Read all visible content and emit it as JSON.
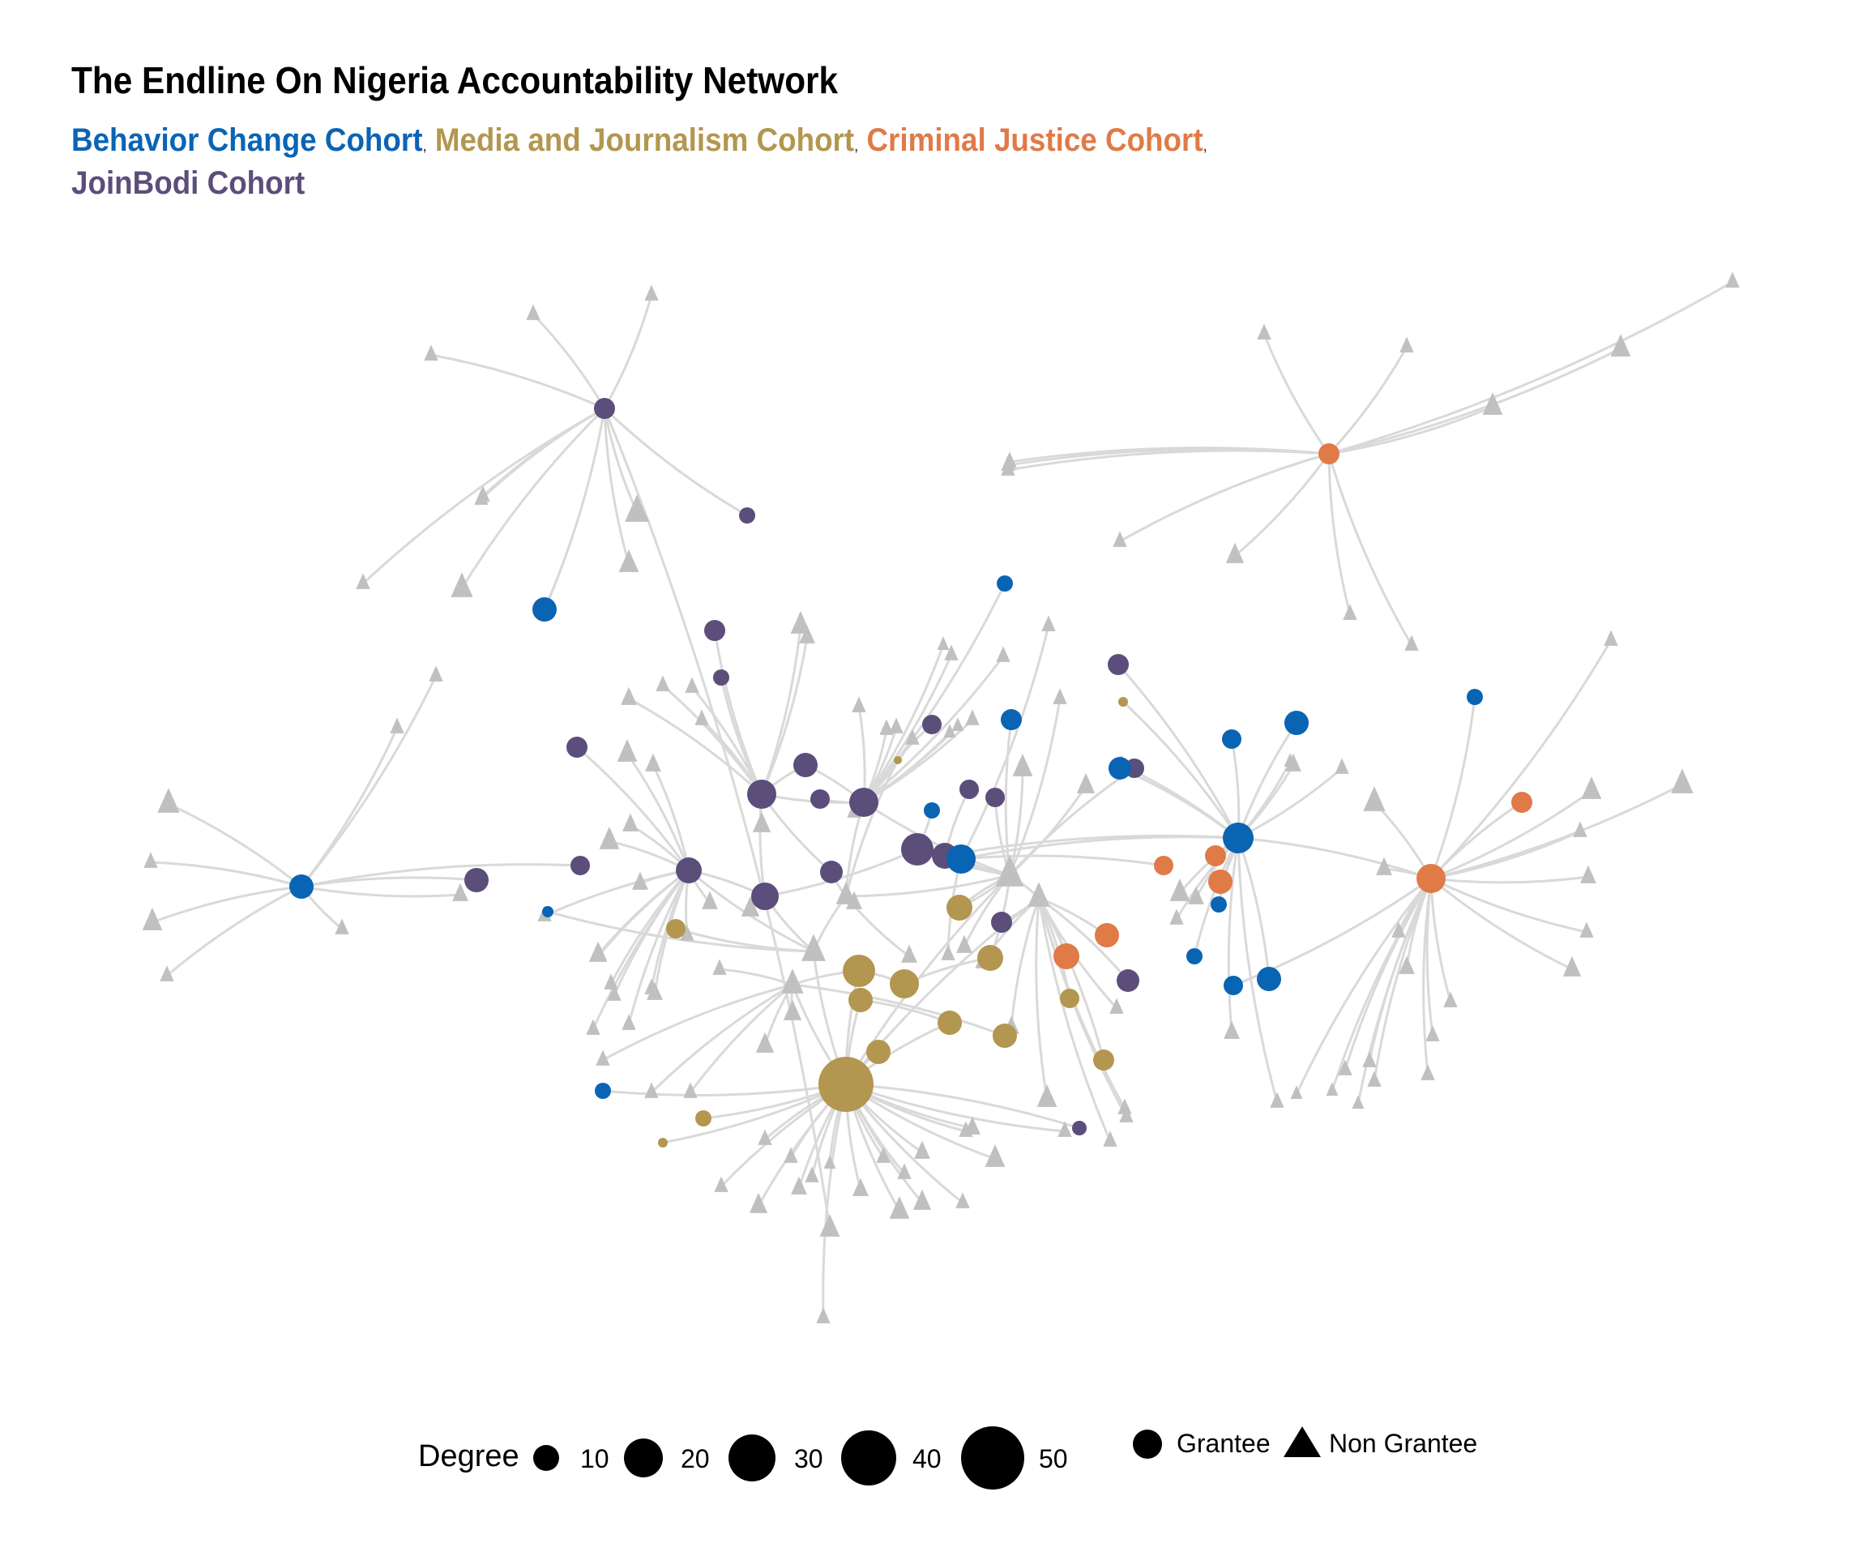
{
  "title": "The Endline On Nigeria Accountability Network",
  "cohorts": [
    {
      "label": "Behavior Change Cohort",
      "color": "#0a64b4",
      "key": "B"
    },
    {
      "label": "Media and Journalism Cohort",
      "color": "#b3964f",
      "key": "M"
    },
    {
      "label": "Criminal Justice Cohort",
      "color": "#e07a47",
      "key": "C"
    },
    {
      "label": "JoinBodi Cohort",
      "color": "#5b4e7b",
      "key": "J"
    }
  ],
  "separator": ",",
  "non_grantee_color": "#c0c0c0",
  "edge_color": "#d9d9d9",
  "legend": {
    "degree_title": "Degree",
    "degree_values": [
      "10",
      "20",
      "30",
      "40",
      "50"
    ],
    "grantee_label": "Grantee",
    "non_grantee_label": "Non Grantee"
  }
}
